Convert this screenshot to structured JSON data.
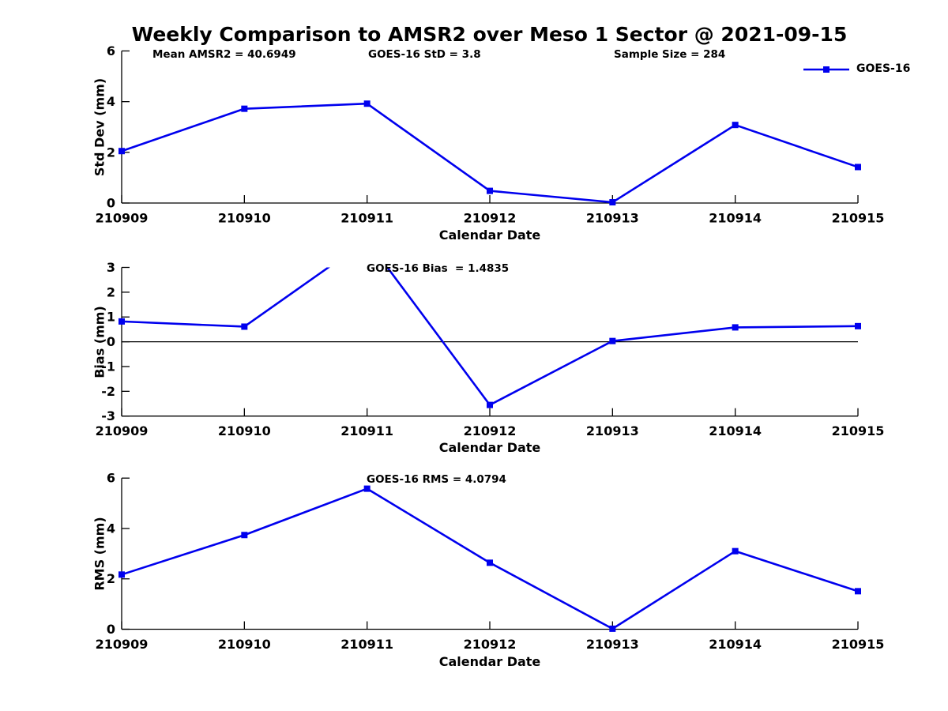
{
  "title": "Weekly Comparison to AMSR2 over Meso 1 Sector @ 2021-09-15",
  "legend": {
    "label": "GOES-16",
    "position": "top-right-of-first-subplot"
  },
  "colors": {
    "line": "#0000EE",
    "axis": "#000000",
    "text": "#000000",
    "background": "#ffffff"
  },
  "chart_data": [
    {
      "type": "line",
      "id": "stddev",
      "categories": [
        "210909",
        "210910",
        "210911",
        "210912",
        "210913",
        "210914",
        "210915"
      ],
      "series": [
        {
          "name": "GOES-16",
          "values": [
            2.05,
            3.72,
            3.92,
            0.48,
            0.03,
            3.08,
            1.42
          ]
        }
      ],
      "annotations": [
        {
          "text": "Mean AMSR2 = 40.6949"
        },
        {
          "text": "GOES-16 StD = 3.8"
        },
        {
          "text": "Sample Size = 284"
        }
      ],
      "xlabel": "Calendar Date",
      "ylabel": "Std Dev (mm)",
      "ylim": [
        0,
        6
      ],
      "yticks": [
        0,
        2,
        4,
        6
      ],
      "grid": false,
      "marker": "square",
      "legend_entry": "GOES-16"
    },
    {
      "type": "line",
      "id": "bias",
      "categories": [
        "210909",
        "210910",
        "210911",
        "210912",
        "210913",
        "210914",
        "210915"
      ],
      "series": [
        {
          "name": "GOES-16",
          "values": [
            0.82,
            0.61,
            4.1,
            -2.55,
            0.03,
            0.58,
            0.63
          ]
        }
      ],
      "annotations": [
        {
          "text": "GOES-16 Bias  = 1.4835"
        }
      ],
      "note": "value at 210911 exceeds ylim and is clipped at top of axes",
      "zero_line": true,
      "xlabel": "Calendar Date",
      "ylabel": "Bias (mm)",
      "ylim": [
        -3,
        3
      ],
      "yticks": [
        -3,
        -2,
        -1,
        0,
        1,
        2,
        3
      ],
      "grid": false,
      "marker": "square"
    },
    {
      "type": "line",
      "id": "rms",
      "categories": [
        "210909",
        "210910",
        "210911",
        "210912",
        "210913",
        "210914",
        "210915"
      ],
      "series": [
        {
          "name": "GOES-16",
          "values": [
            2.17,
            3.74,
            5.58,
            2.64,
            0.02,
            3.1,
            1.51
          ]
        }
      ],
      "annotations": [
        {
          "text": "GOES-16 RMS = 4.0794"
        }
      ],
      "xlabel": "Calendar Date",
      "ylabel": "RMS (mm)",
      "ylim": [
        0,
        6
      ],
      "yticks": [
        0,
        2,
        4,
        6
      ],
      "grid": false,
      "marker": "square"
    }
  ]
}
